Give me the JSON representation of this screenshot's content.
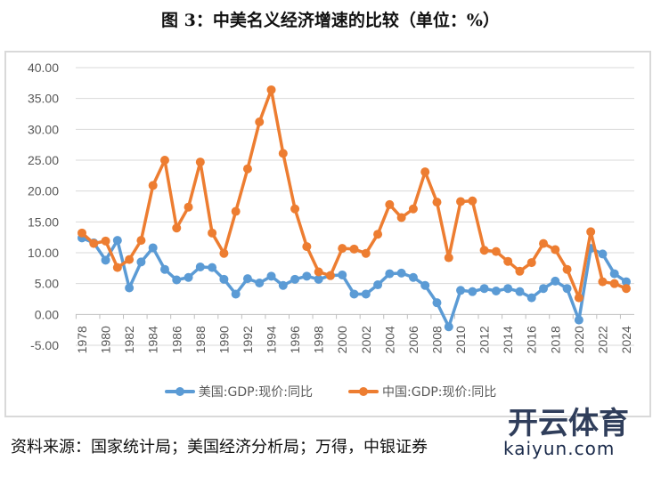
{
  "title": "图 3：中美名义经济增速的比较（单位：%）",
  "source": "资料来源：国家统计局；美国经济分析局；万得，中银证券",
  "watermark": {
    "name": "开云体育",
    "domain": "kaiyun.com"
  },
  "chart_data": {
    "type": "line",
    "title": "图 3：中美名义经济增速的比较（单位：%）",
    "xlabel": "",
    "ylabel": "",
    "ylim": [
      -5,
      40
    ],
    "yticks": [
      "-5.00",
      "0.00",
      "5.00",
      "10.00",
      "15.00",
      "20.00",
      "25.00",
      "30.00",
      "35.00",
      "40.00"
    ],
    "x": [
      1978,
      1979,
      1980,
      1981,
      1982,
      1983,
      1984,
      1985,
      1986,
      1987,
      1988,
      1989,
      1990,
      1991,
      1992,
      1993,
      1994,
      1995,
      1996,
      1997,
      1998,
      1999,
      2000,
      2001,
      2002,
      2003,
      2004,
      2005,
      2006,
      2007,
      2008,
      2009,
      2010,
      2011,
      2012,
      2013,
      2014,
      2015,
      2016,
      2017,
      2018,
      2019,
      2020,
      2021,
      2022,
      2023,
      2024
    ],
    "legend_position": "bottom",
    "grid": true,
    "series": [
      {
        "name": "美国:GDP:现价:同比",
        "color": "#5b9bd5",
        "values": [
          12.4,
          11.6,
          8.8,
          12.0,
          4.3,
          8.5,
          10.8,
          7.3,
          5.6,
          6.0,
          7.7,
          7.6,
          5.7,
          3.3,
          5.8,
          5.1,
          6.2,
          4.7,
          5.7,
          6.2,
          5.7,
          6.3,
          6.4,
          3.3,
          3.3,
          4.8,
          6.6,
          6.7,
          6.0,
          4.7,
          1.9,
          -2.0,
          3.9,
          3.7,
          4.2,
          3.8,
          4.2,
          3.7,
          2.7,
          4.2,
          5.4,
          4.2,
          -0.9,
          10.7,
          9.8,
          6.6,
          5.3
        ]
      },
      {
        "name": "中国:GDP:现价:同比",
        "color": "#ed7d31",
        "values": [
          13.2,
          11.5,
          11.9,
          7.6,
          8.9,
          12.0,
          20.9,
          25.0,
          14.0,
          17.4,
          24.7,
          13.2,
          9.9,
          16.7,
          23.6,
          31.2,
          36.4,
          26.1,
          17.1,
          11.0,
          6.9,
          6.3,
          10.7,
          10.6,
          9.9,
          13.0,
          17.8,
          15.7,
          17.1,
          23.1,
          18.2,
          9.2,
          18.3,
          18.4,
          10.4,
          10.2,
          8.6,
          7.0,
          8.4,
          11.5,
          10.5,
          7.3,
          2.7,
          13.4,
          5.3,
          5.0,
          4.2
        ]
      }
    ]
  }
}
